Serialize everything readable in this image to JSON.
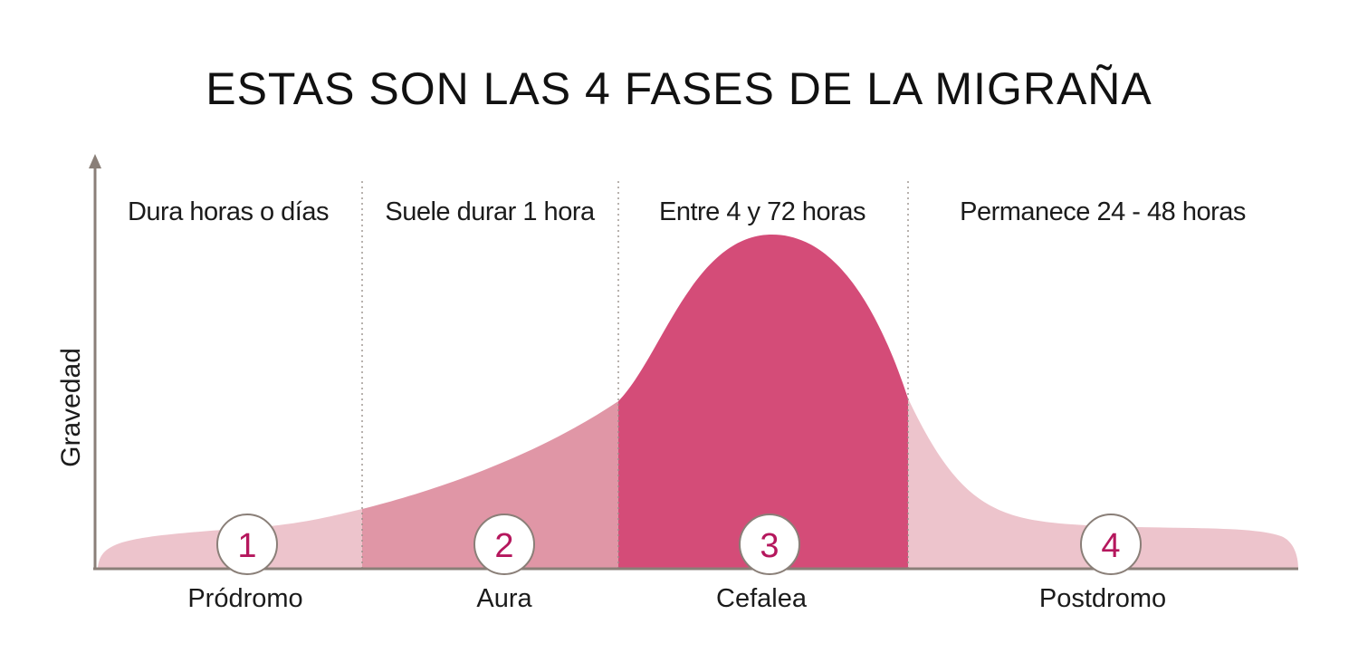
{
  "title": "ESTAS SON LAS 4 FASES DE LA MIGRAÑA",
  "y_axis_label": "Gravedad",
  "phases": [
    {
      "number": "1",
      "name": "Pródromo",
      "duration": "Dura horas o días",
      "severity_shade": "#edc4cc"
    },
    {
      "number": "2",
      "name": "Aura",
      "duration": "Suele durar 1 hora",
      "severity_shade": "#e096a6"
    },
    {
      "number": "3",
      "name": "Cefalea",
      "duration": "Entre 4 y 72 horas",
      "severity_shade": "#d44c78"
    },
    {
      "number": "4",
      "name": "Postdromo",
      "duration": "Permanece 24 - 48 horas",
      "severity_shade": "#edc4cc"
    }
  ],
  "colors": {
    "axis": "#8a7f78",
    "divider": "#9a918b",
    "badge_border": "#8a7f78",
    "badge_number": "#b5175d"
  }
}
